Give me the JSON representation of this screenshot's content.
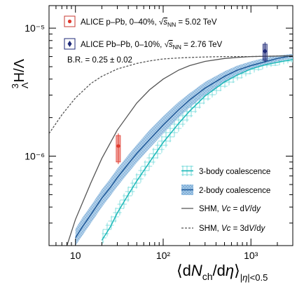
{
  "chart_data": {
    "type": "line",
    "xlabel": "⟨dNch/dη⟩|η|<0.5",
    "ylabel": "³ΛH/Λ",
    "x_scale": "log",
    "y_scale": "log",
    "xlim": [
      5,
      3000
    ],
    "ylim": [
      2e-07,
      1.5e-05
    ],
    "x_ticks": [
      10,
      100,
      1000
    ],
    "x_tick_labels": [
      "10",
      "10²",
      "10³"
    ],
    "y_ticks": [
      1e-06,
      1e-05
    ],
    "y_tick_labels": [
      "10⁻⁶",
      "10⁻⁵"
    ],
    "annotation": "B.R. = 0.25 ± 0.02",
    "data_points": [
      {
        "name": "ALICE p–Pb, 0–40%, √sNN = 5.02 TeV",
        "x": 30.8,
        "y": 1.2e-06,
        "y_err_low": 9e-07,
        "y_err_high": 1.45e-06,
        "color": "#e03a2e",
        "marker": "circle"
      },
      {
        "name": "ALICE Pb–Pb, 0–10%, √sNN = 2.76 TeV",
        "x": 1447,
        "y": 6.6e-06,
        "y_err_low": 5.6e-06,
        "y_err_high": 7.5e-06,
        "color": "#1f2a78",
        "marker": "diamond"
      }
    ],
    "series": [
      {
        "name": "3-body coalescence",
        "style": "band",
        "color": "#2ebfbf",
        "x": [
          20,
          25,
          30,
          40,
          50,
          70,
          100,
          150,
          200,
          300,
          500,
          700,
          1000,
          1500,
          2000,
          3000
        ],
        "y_low": [
          2e-07,
          2.6e-07,
          3.2e-07,
          4.4e-07,
          5.6e-07,
          7.8e-07,
          1.1e-06,
          1.55e-06,
          1.95e-06,
          2.6e-06,
          3.4e-06,
          3.9e-06,
          4.4e-06,
          4.9e-06,
          5.1e-06,
          5.4e-06
        ],
        "y_mid": [
          2.2e-07,
          2.8e-07,
          3.6e-07,
          5e-07,
          6.4e-07,
          9e-07,
          1.28e-06,
          1.8e-06,
          2.25e-06,
          2.95e-06,
          3.8e-06,
          4.3e-06,
          4.8e-06,
          5.2e-06,
          5.4e-06,
          5.7e-06
        ],
        "y_high": [
          2.6e-07,
          3.3e-07,
          4.2e-07,
          5.8e-07,
          7.4e-07,
          1.05e-06,
          1.5e-06,
          2.1e-06,
          2.6e-06,
          3.35e-06,
          4.2e-06,
          4.7e-06,
          5.2e-06,
          5.6e-06,
          5.8e-06,
          6e-06
        ]
      },
      {
        "name": "2-body coalescence",
        "style": "band",
        "color": "#2a6bb0",
        "x": [
          10,
          12,
          15,
          20,
          25,
          30,
          40,
          50,
          70,
          100,
          150,
          200,
          300,
          500,
          700,
          1000,
          1500,
          2000,
          3000
        ],
        "y_low": [
          2e-07,
          2.4e-07,
          3e-07,
          4e-07,
          4.9e-07,
          5.8e-07,
          7.4e-07,
          8.9e-07,
          1.15e-06,
          1.5e-06,
          2e-06,
          2.4e-06,
          3e-06,
          3.8e-06,
          4.3e-06,
          4.8e-06,
          5.2e-06,
          5.5e-06,
          5.8e-06
        ],
        "y_mid": [
          2.3e-07,
          2.8e-07,
          3.5e-07,
          4.7e-07,
          5.7e-07,
          6.8e-07,
          8.7e-07,
          1.05e-06,
          1.35e-06,
          1.75e-06,
          2.3e-06,
          2.75e-06,
          3.4e-06,
          4.2e-06,
          4.7e-06,
          5.1e-06,
          5.5e-06,
          5.8e-06,
          6.1e-06
        ],
        "y_high": [
          2.7e-07,
          3.3e-07,
          4.1e-07,
          5.5e-07,
          6.7e-07,
          8e-07,
          1.02e-06,
          1.23e-06,
          1.6e-06,
          2.05e-06,
          2.65e-06,
          3.1e-06,
          3.8e-06,
          4.6e-06,
          5.1e-06,
          5.5e-06,
          5.9e-06,
          6.1e-06,
          6.3e-06
        ]
      },
      {
        "name": "SHM, Vc = dV/dy",
        "style": "solid",
        "color": "#555555",
        "x": [
          8,
          10,
          15,
          20,
          30,
          50,
          70,
          100,
          150,
          200,
          300,
          500,
          700,
          1000,
          2000,
          3000
        ],
        "y": [
          2e-07,
          3.2e-07,
          6.2e-07,
          9.6e-07,
          1.6e-06,
          2.6e-06,
          3.3e-06,
          4e-06,
          4.7e-06,
          5.1e-06,
          5.5e-06,
          5.8e-06,
          5.9e-06,
          6e-06,
          6.05e-06,
          6.1e-06
        ]
      },
      {
        "name": "SHM, Vc = 3dV/dy",
        "style": "dashed",
        "color": "#555555",
        "x": [
          5,
          7,
          10,
          15,
          20,
          30,
          50,
          70,
          100,
          150,
          200,
          300,
          500,
          700,
          1000,
          2000,
          3000
        ],
        "y": [
          1.5e-06,
          2.1e-06,
          2.85e-06,
          3.7e-06,
          4.2e-06,
          4.8e-06,
          5.3e-06,
          5.55e-06,
          5.75e-06,
          5.85e-06,
          5.9e-06,
          5.95e-06,
          6e-06,
          6e-06,
          6e-06,
          6.05e-06,
          6.05e-06
        ]
      }
    ],
    "legend": {
      "top": [
        "ALICE p–Pb, 0–40%, √sNN = 5.02 TeV",
        "ALICE Pb–Pb, 0–10%, √sNN = 2.76 TeV"
      ],
      "bottom": [
        "3-body coalescence",
        "2-body coalescence",
        "SHM, Vc = dV/dy",
        "SHM, Vc = 3dV/dy"
      ]
    }
  }
}
